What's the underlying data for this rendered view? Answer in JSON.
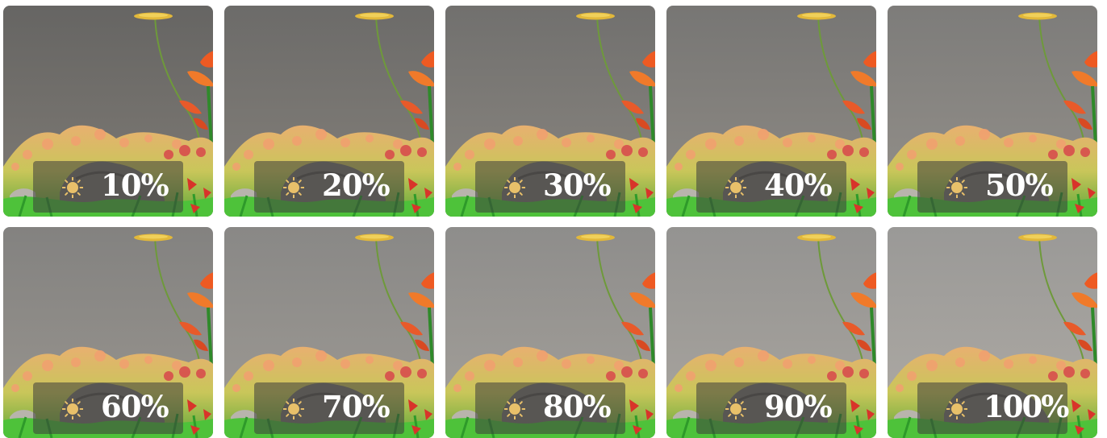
{
  "tiles": [
    {
      "label": "10%",
      "level": 0.1
    },
    {
      "label": "20%",
      "level": 0.2
    },
    {
      "label": "30%",
      "level": 0.3
    },
    {
      "label": "40%",
      "level": 0.4
    },
    {
      "label": "50%",
      "level": 0.5
    },
    {
      "label": "60%",
      "level": 0.6
    },
    {
      "label": "70%",
      "level": 0.7
    },
    {
      "label": "80%",
      "level": 0.8
    },
    {
      "label": "90%",
      "level": 0.9
    },
    {
      "label": "100%",
      "level": 1.0
    }
  ],
  "icon": "sun-icon",
  "colors": {
    "sun": "#e8c06a",
    "badge": "#3c3c3c",
    "label": "#ffffff"
  }
}
